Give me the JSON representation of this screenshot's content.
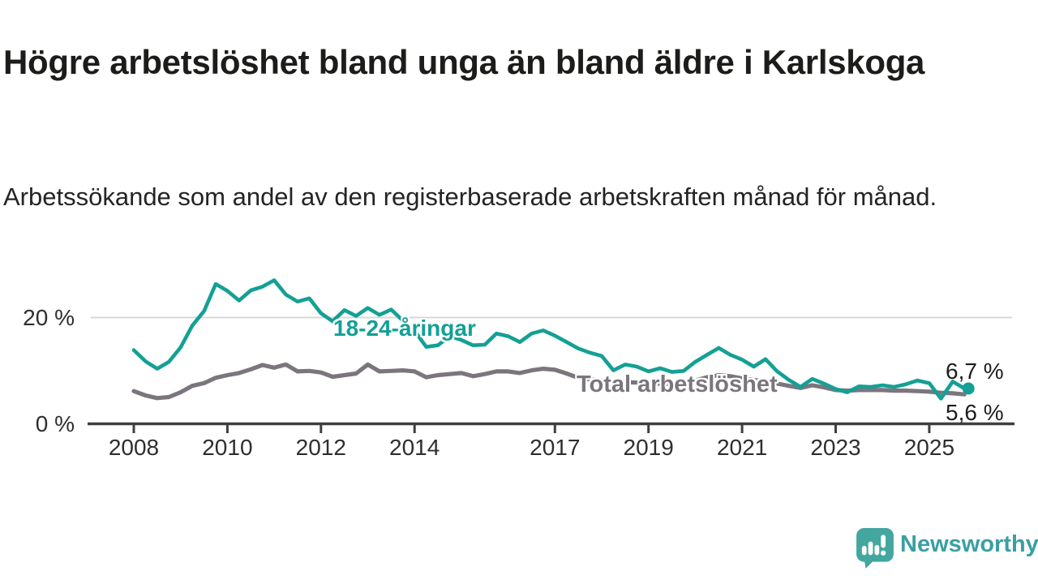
{
  "chart_data": {
    "type": "line",
    "title": "Högre arbetslöshet bland unga än bland äldre i Karlskoga",
    "subtitle": "Arbetssökande som andel av den registerbaserade arbetskraften månad för månad.",
    "y_unit": "%",
    "x_range": [
      2007.9,
      2026.3
    ],
    "y_range": [
      0,
      30
    ],
    "grid": "single-horizontal-gridline-at-20",
    "legend": "inline-labels-on-lines",
    "y_ticks": [
      {
        "value": 20,
        "label": "20 %",
        "gridline": true
      },
      {
        "value": 0,
        "label": "0 %",
        "gridline": false
      }
    ],
    "x_ticks": [
      {
        "year": 2008,
        "label": "2008"
      },
      {
        "year": 2010,
        "label": "2010"
      },
      {
        "year": 2012,
        "label": "2012"
      },
      {
        "year": 2014,
        "label": "2014"
      },
      {
        "year": 2017,
        "label": "2017"
      },
      {
        "year": 2019,
        "label": "2019"
      },
      {
        "year": 2021,
        "label": "2021"
      },
      {
        "year": 2023,
        "label": "2023"
      },
      {
        "year": 2025,
        "label": "2025"
      }
    ],
    "x": [
      2008,
      2008.25,
      2008.5,
      2008.75,
      2009,
      2009.25,
      2009.5,
      2009.75,
      2010,
      2010.25,
      2010.5,
      2010.75,
      2011,
      2011.25,
      2011.5,
      2011.75,
      2012,
      2012.25,
      2012.5,
      2012.75,
      2013,
      2013.25,
      2013.5,
      2013.75,
      2014,
      2014.25,
      2014.5,
      2014.75,
      2015,
      2015.25,
      2015.5,
      2015.75,
      2016,
      2016.25,
      2016.5,
      2016.75,
      2017,
      2017.25,
      2017.5,
      2017.75,
      2018,
      2018.25,
      2018.5,
      2018.75,
      2019,
      2019.25,
      2019.5,
      2019.75,
      2020,
      2020.25,
      2020.5,
      2020.75,
      2021,
      2021.25,
      2021.5,
      2021.75,
      2022,
      2022.25,
      2022.5,
      2022.75,
      2023,
      2023.25,
      2023.5,
      2023.75,
      2024,
      2024.25,
      2024.5,
      2024.75,
      2025,
      2025.25,
      2025.5,
      2025.75
    ],
    "series": [
      {
        "name": "Total arbetslöshet",
        "label": "Total arbetslöshet",
        "color": "#7b767d",
        "end_label": "5,6 %",
        "end_value": 5.6,
        "end_dot": false,
        "values": [
          6.2,
          5.4,
          4.9,
          5.1,
          6.0,
          7.2,
          7.7,
          8.7,
          9.2,
          9.6,
          10.3,
          11.1,
          10.6,
          11.2,
          9.9,
          10.0,
          9.7,
          8.9,
          9.2,
          9.5,
          11.2,
          9.9,
          10.0,
          10.1,
          9.9,
          8.8,
          9.2,
          9.4,
          9.6,
          9.0,
          9.4,
          9.9,
          9.9,
          9.6,
          10.1,
          10.4,
          10.2,
          9.5,
          8.7,
          8.4,
          8.2,
          8.0,
          7.9,
          7.8,
          7.7,
          7.6,
          7.6,
          7.8,
          8.2,
          8.8,
          9.2,
          9.0,
          8.6,
          8.3,
          8.0,
          7.6,
          7.2,
          6.8,
          7.3,
          6.9,
          6.4,
          6.3,
          6.4,
          6.4,
          6.4,
          6.3,
          6.3,
          6.2,
          6.1,
          5.9,
          5.8,
          5.6
        ]
      },
      {
        "name": "18-24-åringar",
        "label": "18-24-åringar",
        "color": "#14a095",
        "end_label": "6,7 %",
        "end_value": 6.7,
        "end_dot": true,
        "values": [
          13.9,
          11.8,
          10.4,
          11.7,
          14.4,
          18.5,
          21.2,
          26.3,
          25.0,
          23.2,
          25.1,
          25.8,
          27.0,
          24.3,
          23.0,
          23.6,
          20.8,
          19.3,
          21.4,
          20.3,
          21.8,
          20.5,
          21.5,
          19.4,
          17.5,
          14.5,
          14.8,
          16.5,
          15.8,
          14.8,
          14.9,
          17.0,
          16.5,
          15.4,
          17.0,
          17.6,
          16.6,
          15.4,
          14.2,
          13.4,
          12.8,
          10.1,
          11.2,
          10.8,
          9.9,
          10.5,
          9.8,
          10.0,
          11.7,
          13.0,
          14.3,
          13.0,
          12.1,
          10.8,
          12.2,
          9.9,
          8.3,
          7.0,
          8.5,
          7.6,
          6.6,
          6.0,
          7.1,
          7.0,
          7.3,
          7.0,
          7.5,
          8.2,
          7.7,
          4.8,
          8.0,
          6.7
        ]
      }
    ]
  },
  "branding": {
    "logo_text": "Newsworthy",
    "logo_mark_color": "#43a79f",
    "logo_text_color": "#3a9fa3"
  }
}
